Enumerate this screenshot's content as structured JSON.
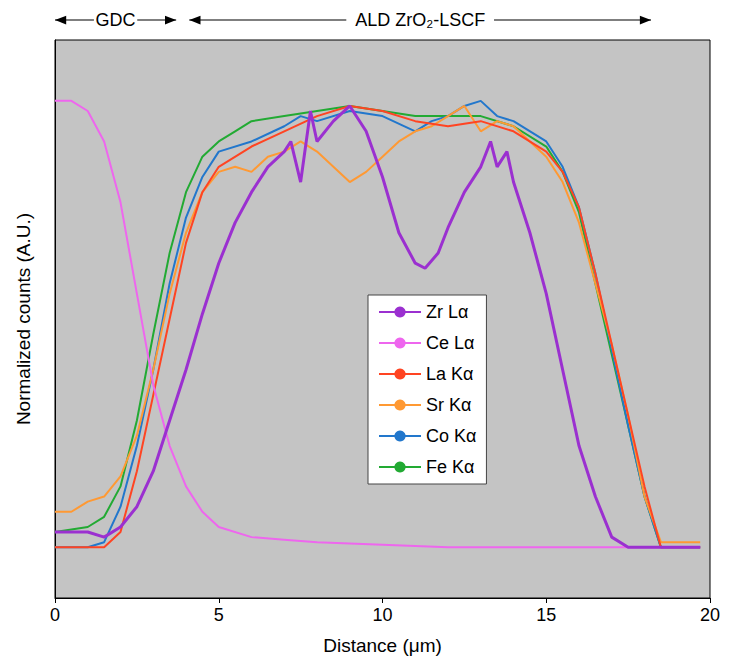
{
  "chart_data": {
    "type": "line",
    "xlabel": "Distance (μm)",
    "ylabel": "Normalized counts (A.U.)",
    "xlim": [
      0,
      20
    ],
    "xticks": [
      0,
      5,
      10,
      15,
      20
    ],
    "ylim": [
      0,
      1.1
    ],
    "tick_labels": "x",
    "grid": false,
    "legend": "center",
    "annotations": [
      {
        "text": "GDC",
        "x_range": [
          0,
          3.7
        ]
      },
      {
        "text": "ALD ZrO₂-LSCF",
        "x_range": [
          4.1,
          18.2
        ]
      }
    ],
    "series": [
      {
        "name": "Zr Lα",
        "color": "#9b30d0",
        "x": [
          0,
          1,
          1.5,
          2,
          2.5,
          3,
          3.5,
          4,
          4.5,
          5,
          5.5,
          6,
          6.5,
          7,
          7.2,
          7.5,
          7.8,
          8,
          8.5,
          9,
          9.5,
          10,
          10.5,
          11,
          11.3,
          11.7,
          12,
          12.5,
          13,
          13.3,
          13.5,
          13.8,
          14,
          14.5,
          15,
          15.5,
          16,
          16.5,
          17,
          17.5,
          19.7
        ],
        "values": [
          0.13,
          0.13,
          0.12,
          0.14,
          0.18,
          0.25,
          0.35,
          0.45,
          0.56,
          0.66,
          0.74,
          0.8,
          0.85,
          0.88,
          0.9,
          0.82,
          0.96,
          0.9,
          0.94,
          0.97,
          0.92,
          0.83,
          0.72,
          0.66,
          0.65,
          0.68,
          0.73,
          0.8,
          0.85,
          0.9,
          0.85,
          0.88,
          0.82,
          0.72,
          0.6,
          0.45,
          0.3,
          0.2,
          0.12,
          0.1,
          0.1
        ]
      },
      {
        "name": "Ce Lα",
        "color": "#ee66ee",
        "x": [
          0,
          0.5,
          1,
          1.5,
          2,
          2.5,
          3,
          3.5,
          4,
          4.5,
          5,
          6,
          7,
          8,
          10,
          12,
          14,
          16,
          18,
          19.7
        ],
        "values": [
          0.98,
          0.98,
          0.96,
          0.9,
          0.78,
          0.6,
          0.42,
          0.3,
          0.22,
          0.17,
          0.14,
          0.12,
          0.115,
          0.11,
          0.105,
          0.1,
          0.1,
          0.1,
          0.1,
          0.1
        ]
      },
      {
        "name": "La Kα",
        "color": "#ff4422",
        "x": [
          0,
          1,
          1.5,
          2,
          2.5,
          3,
          3.5,
          4,
          4.5,
          5,
          6,
          7,
          8,
          9,
          10,
          11,
          12,
          13,
          14,
          15,
          15.5,
          16,
          16.5,
          17,
          17.5,
          18,
          18.5,
          19.7
        ],
        "values": [
          0.1,
          0.1,
          0.1,
          0.13,
          0.25,
          0.4,
          0.55,
          0.7,
          0.8,
          0.85,
          0.89,
          0.92,
          0.95,
          0.97,
          0.96,
          0.94,
          0.93,
          0.94,
          0.92,
          0.88,
          0.84,
          0.77,
          0.64,
          0.5,
          0.36,
          0.22,
          0.1,
          0.1
        ]
      },
      {
        "name": "Sr Kα",
        "color": "#ff9933",
        "x": [
          0,
          0.5,
          1,
          1.5,
          2,
          2.5,
          3,
          3.5,
          4,
          4.5,
          5,
          5.5,
          6,
          6.5,
          7,
          7.5,
          8,
          8.5,
          9,
          9.5,
          10,
          10.5,
          11,
          11.5,
          12,
          12.5,
          13,
          13.5,
          14,
          15,
          15.5,
          16,
          16.5,
          17,
          17.5,
          18,
          18.5,
          19.7
        ],
        "values": [
          0.17,
          0.17,
          0.19,
          0.2,
          0.24,
          0.32,
          0.45,
          0.6,
          0.72,
          0.8,
          0.84,
          0.85,
          0.84,
          0.87,
          0.88,
          0.9,
          0.88,
          0.85,
          0.82,
          0.84,
          0.87,
          0.9,
          0.92,
          0.93,
          0.95,
          0.97,
          0.92,
          0.94,
          0.93,
          0.87,
          0.82,
          0.74,
          0.62,
          0.5,
          0.36,
          0.2,
          0.11,
          0.11
        ]
      },
      {
        "name": "Co Kα",
        "color": "#2277cc",
        "x": [
          0,
          1,
          1.5,
          2,
          2.5,
          3,
          3.5,
          4,
          4.5,
          5,
          6,
          7,
          7.5,
          8,
          9,
          10,
          11,
          11.5,
          12,
          12.5,
          13,
          13.5,
          14,
          15,
          15.5,
          16,
          16.5,
          17,
          17.5,
          18,
          18.5,
          19.7
        ],
        "values": [
          0.1,
          0.1,
          0.11,
          0.18,
          0.3,
          0.45,
          0.62,
          0.75,
          0.83,
          0.88,
          0.9,
          0.93,
          0.95,
          0.94,
          0.96,
          0.95,
          0.92,
          0.94,
          0.95,
          0.97,
          0.98,
          0.95,
          0.94,
          0.9,
          0.85,
          0.77,
          0.64,
          0.49,
          0.34,
          0.2,
          0.1,
          0.1
        ]
      },
      {
        "name": "Fe Kα",
        "color": "#22aa33",
        "x": [
          0,
          1,
          1.5,
          2,
          2.5,
          3,
          3.5,
          4,
          4.5,
          5,
          5.5,
          6,
          7,
          8,
          9,
          10,
          11,
          12,
          13,
          14,
          15,
          15.5,
          16,
          16.5,
          17,
          17.5,
          18,
          18.5,
          19.7
        ],
        "values": [
          0.13,
          0.14,
          0.16,
          0.22,
          0.35,
          0.52,
          0.68,
          0.8,
          0.87,
          0.9,
          0.92,
          0.94,
          0.95,
          0.96,
          0.97,
          0.96,
          0.95,
          0.95,
          0.95,
          0.93,
          0.89,
          0.84,
          0.76,
          0.62,
          0.48,
          0.34,
          0.2,
          0.1,
          0.1
        ]
      }
    ]
  }
}
